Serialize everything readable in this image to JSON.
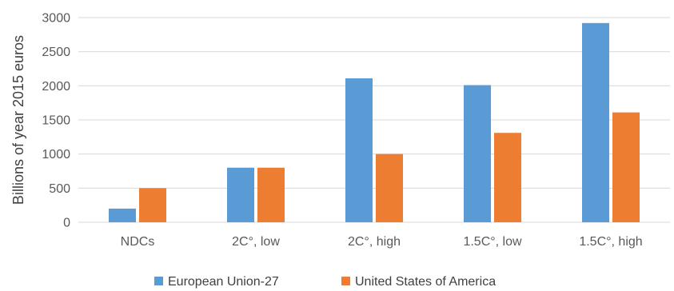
{
  "chart_data": {
    "type": "bar",
    "title": "",
    "xlabel": "",
    "ylabel": "Billions of year 2015 euros",
    "ylim": [
      0,
      3000
    ],
    "yticks": [
      0,
      500,
      1000,
      1500,
      2000,
      2500,
      3000
    ],
    "grid": true,
    "legend_position": "bottom",
    "categories": [
      "NDCs",
      "2C°, low",
      "2C°, high",
      "1.5C°, low",
      "1.5C°, high"
    ],
    "series": [
      {
        "name": "European Union-27",
        "color": "#5b9bd5",
        "values": [
          200,
          800,
          2110,
          2010,
          2920
        ]
      },
      {
        "name": "United States of America",
        "color": "#ed7d31",
        "values": [
          500,
          800,
          1000,
          1310,
          1610
        ]
      }
    ]
  }
}
